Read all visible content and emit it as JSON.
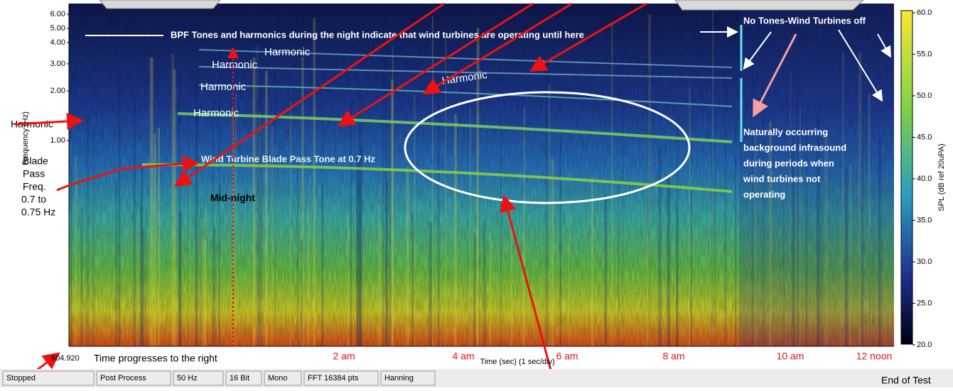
{
  "spectrogram": {
    "y_axis_label": "Frequency (Hz)",
    "y_ticks": [
      "6.00",
      "5.00",
      "4.00",
      "3.00",
      "2.00",
      "1.00"
    ],
    "x_start": "604.920",
    "x_axis_label": "Time (sec) (1 sec/div)",
    "colorbar_label": "SPL (dB ref 20uPA)",
    "colorbar_ticks": [
      "60.0",
      "55.0",
      "50.0",
      "45.0",
      "40.0",
      "35.0",
      "30.0",
      "25.0",
      "20.0"
    ]
  },
  "annotations": {
    "bpf_note": "BPF Tones and harmonics during the night indicate that wind turbines are operating until here",
    "no_tones": "No Tones-Wind Turbines off",
    "harmonics": [
      "Harmonic",
      "Harmonic",
      "Harmonic",
      "Harmonic",
      "Harmonic",
      "Harmonic"
    ],
    "blade_pass_tone": "Wind Turbine Blade Pass Tone at 0.7 Hz",
    "midnight": "Mid-night",
    "blade_pass_freq": [
      "Blade",
      "Pass",
      "Freq.",
      "0.7 to",
      "0.75 Hz"
    ],
    "natural": [
      "Naturally occurring",
      "background infrasound",
      "during periods when",
      "wind turbines not",
      "operating"
    ],
    "time_progresses": "Time progresses to the right",
    "time_labels": [
      "2 am",
      "4 am",
      "6 am",
      "8 am",
      "10 am",
      "12 noon"
    ],
    "end_of_test": "End of Test"
  },
  "status_bar": [
    "Stopped",
    "Post Process",
    "50 Hz",
    "16 Bit",
    "Mono",
    "FFT 16384 pts",
    "Hanning"
  ]
}
